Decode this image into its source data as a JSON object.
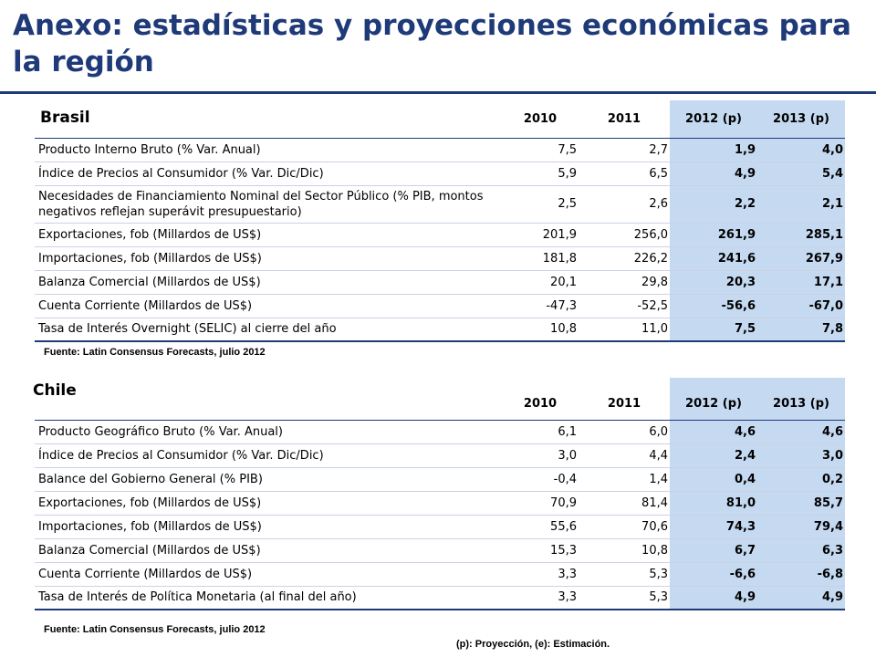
{
  "title": "Anexo: estadísticas y proyecciones económicas para la región",
  "sections": [
    {
      "country": "Brasil",
      "columns": [
        "2010",
        "2011",
        "2012 (p)",
        "2013 (p)"
      ],
      "rows": [
        {
          "label": "Producto Interno Bruto (% Var. Anual)",
          "values": [
            "7,5",
            "2,7",
            "1,9",
            "4,0"
          ]
        },
        {
          "label": "Índice de Precios al Consumidor (% Var. Dic/Dic)",
          "values": [
            "5,9",
            "6,5",
            "4,9",
            "5,4"
          ]
        },
        {
          "label": "Necesidades de Financiamiento Nominal del Sector Público (% PIB, montos negativos reflejan superávit presupuestario)",
          "values": [
            "2,5",
            "2,6",
            "2,2",
            "2,1"
          ]
        },
        {
          "label": "Exportaciones, fob (Millardos de US$)",
          "values": [
            "201,9",
            "256,0",
            "261,9",
            "285,1"
          ]
        },
        {
          "label": "Importaciones, fob (Millardos de US$)",
          "values": [
            "181,8",
            "226,2",
            "241,6",
            "267,9"
          ]
        },
        {
          "label": "Balanza Comercial (Millardos de US$)",
          "values": [
            "20,1",
            "29,8",
            "20,3",
            "17,1"
          ]
        },
        {
          "label": "Cuenta Corriente (Millardos de US$)",
          "values": [
            "-47,3",
            "-52,5",
            "-56,6",
            "-67,0"
          ]
        },
        {
          "label": "Tasa de Interés Overnight (SELIC) al cierre del año",
          "values": [
            "10,8",
            "11,0",
            "7,5",
            "7,8"
          ]
        }
      ],
      "source": "Fuente: Latin Consensus Forecasts, julio 2012"
    },
    {
      "country": "Chile",
      "columns": [
        "2010",
        "2011",
        "2012 (p)",
        "2013 (p)"
      ],
      "rows": [
        {
          "label": "Producto Geográfico Bruto (% Var. Anual)",
          "values": [
            "6,1",
            "6,0",
            "4,6",
            "4,6"
          ]
        },
        {
          "label": "Índice de Precios al Consumidor (% Var. Dic/Dic)",
          "values": [
            "3,0",
            "4,4",
            "2,4",
            "3,0"
          ]
        },
        {
          "label": "Balance del Gobierno General (% PIB)",
          "values": [
            "-0,4",
            "1,4",
            "0,4",
            "0,2"
          ]
        },
        {
          "label": "Exportaciones, fob (Millardos de US$)",
          "values": [
            "70,9",
            "81,4",
            "81,0",
            "85,7"
          ]
        },
        {
          "label": "Importaciones, fob (Millardos de US$)",
          "values": [
            "55,6",
            "70,6",
            "74,3",
            "79,4"
          ]
        },
        {
          "label": "Balanza Comercial (Millardos de US$)",
          "values": [
            "15,3",
            "10,8",
            "6,7",
            "6,3"
          ]
        },
        {
          "label": "Cuenta Corriente (Millardos de US$)",
          "values": [
            "3,3",
            "5,3",
            "-6,6",
            "-6,8"
          ]
        },
        {
          "label": "Tasa de Interés de Política Monetaria (al final del año)",
          "values": [
            "3,3",
            "5,3",
            "4,9",
            "4,9"
          ]
        }
      ],
      "source": "Fuente: Latin Consensus Forecasts, julio 2012"
    }
  ],
  "footnote": "(p): Proyección, (e): Estimación.",
  "colors": {
    "title": "#1f3a78",
    "projection_fill": "#c5d9f1"
  }
}
